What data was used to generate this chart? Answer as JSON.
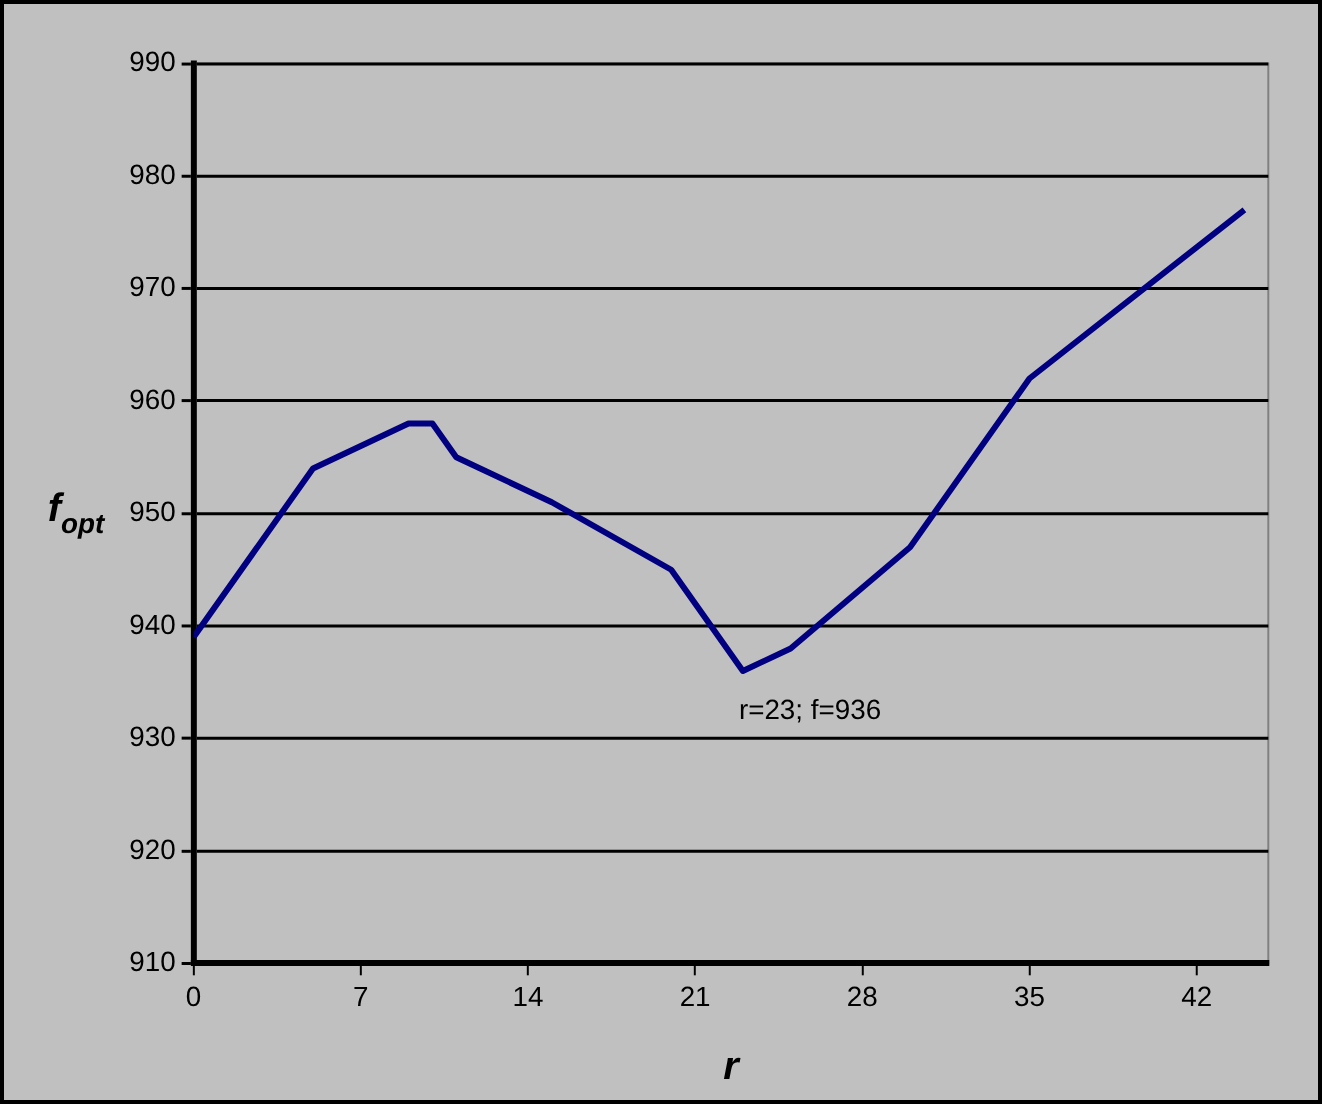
{
  "chart_data": {
    "type": "line",
    "xlabel": "r",
    "ylabel": "f$_{opt}$",
    "x": [
      0,
      5,
      9,
      10,
      11,
      15,
      20,
      23,
      25,
      30,
      35,
      44
    ],
    "series": [
      {
        "color": "#000080",
        "values": [
          939,
          954,
          958,
          958,
          955,
          951,
          945,
          936,
          938,
          947,
          962,
          977
        ]
      }
    ],
    "xlim": [
      0,
      45
    ],
    "xticks": [
      0,
      7,
      14,
      21,
      28,
      35,
      42
    ],
    "ylim": [
      910,
      990
    ],
    "yticks": [
      910,
      920,
      930,
      940,
      950,
      960,
      970,
      980,
      990
    ],
    "grid": "y",
    "legend": false,
    "marker": "none",
    "line_style": "solid",
    "annotations": [
      {
        "text": "r=23; f=936",
        "x": 23,
        "y": 936
      }
    ]
  }
}
